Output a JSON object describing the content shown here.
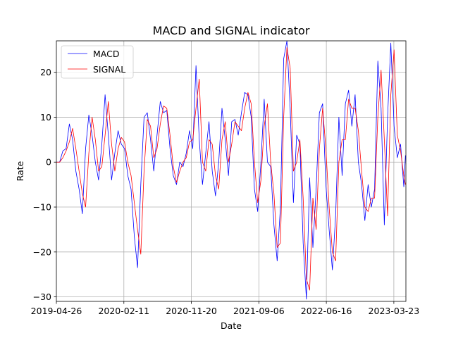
{
  "chart_data": {
    "type": "line",
    "title": "MACD and SIGNAL indicator",
    "xlabel": "Date",
    "ylabel": "Rate",
    "x_tick_labels": [
      "2019-04-26",
      "2020-02-11",
      "2020-11-20",
      "2021-09-06",
      "2022-06-16",
      "2023-03-23"
    ],
    "y_ticks": [
      -30,
      -20,
      -10,
      0,
      10,
      20
    ],
    "ylim": [
      -31,
      27
    ],
    "grid": true,
    "legend_position": "top-left",
    "series": [
      {
        "name": "MACD",
        "color": "#0000ff",
        "points": [
          [
            "2019-04-26",
            0
          ],
          [
            "2019-05-10",
            0
          ],
          [
            "2019-05-24",
            2.5
          ],
          [
            "2019-06-07",
            3
          ],
          [
            "2019-06-21",
            8.5
          ],
          [
            "2019-07-05",
            5
          ],
          [
            "2019-07-19",
            -2
          ],
          [
            "2019-08-02",
            -6
          ],
          [
            "2019-08-16",
            -11.5
          ],
          [
            "2019-08-30",
            3
          ],
          [
            "2019-09-13",
            10.5
          ],
          [
            "2019-09-27",
            6
          ],
          [
            "2019-10-11",
            0
          ],
          [
            "2019-10-25",
            -4
          ],
          [
            "2019-11-08",
            4
          ],
          [
            "2019-11-22",
            15
          ],
          [
            "2019-12-06",
            6
          ],
          [
            "2019-12-20",
            -4
          ],
          [
            "2020-01-03",
            2
          ],
          [
            "2020-01-17",
            7
          ],
          [
            "2020-01-31",
            4
          ],
          [
            "2020-02-14",
            3
          ],
          [
            "2020-02-28",
            -3
          ],
          [
            "2020-03-13",
            -6
          ],
          [
            "2020-03-27",
            -16.5
          ],
          [
            "2020-04-10",
            -23.5
          ],
          [
            "2020-04-24",
            -5
          ],
          [
            "2020-05-08",
            10
          ],
          [
            "2020-05-22",
            11
          ],
          [
            "2020-06-05",
            5
          ],
          [
            "2020-06-19",
            -2
          ],
          [
            "2020-07-03",
            6
          ],
          [
            "2020-07-17",
            13.5
          ],
          [
            "2020-07-31",
            11
          ],
          [
            "2020-08-14",
            11.5
          ],
          [
            "2020-08-28",
            3
          ],
          [
            "2020-09-11",
            -3
          ],
          [
            "2020-09-25",
            -5
          ],
          [
            "2020-10-09",
            0
          ],
          [
            "2020-10-23",
            -1
          ],
          [
            "2020-11-06",
            2
          ],
          [
            "2020-11-20",
            7
          ],
          [
            "2020-12-04",
            3
          ],
          [
            "2020-12-18",
            21.5
          ],
          [
            "2021-01-01",
            5
          ],
          [
            "2021-01-15",
            -5
          ],
          [
            "2021-01-29",
            2
          ],
          [
            "2021-02-12",
            9
          ],
          [
            "2021-02-26",
            -2
          ],
          [
            "2021-03-12",
            -7.5
          ],
          [
            "2021-03-26",
            0
          ],
          [
            "2021-04-09",
            12
          ],
          [
            "2021-04-23",
            5
          ],
          [
            "2021-05-07",
            -3
          ],
          [
            "2021-05-21",
            9
          ],
          [
            "2021-06-04",
            9.5
          ],
          [
            "2021-06-18",
            6
          ],
          [
            "2021-07-02",
            11
          ],
          [
            "2021-07-16",
            15.5
          ],
          [
            "2021-07-30",
            15
          ],
          [
            "2021-08-13",
            10
          ],
          [
            "2021-08-27",
            -6
          ],
          [
            "2021-09-10",
            -11
          ],
          [
            "2021-09-24",
            0
          ],
          [
            "2021-10-08",
            14
          ],
          [
            "2021-10-22",
            0
          ],
          [
            "2021-11-05",
            -1
          ],
          [
            "2021-11-19",
            -14
          ],
          [
            "2021-12-03",
            -22
          ],
          [
            "2021-12-17",
            -10
          ],
          [
            "2021-12-31",
            23
          ],
          [
            "2022-01-14",
            27
          ],
          [
            "2022-01-28",
            12
          ],
          [
            "2022-02-11",
            -9
          ],
          [
            "2022-02-25",
            6
          ],
          [
            "2022-03-11",
            4
          ],
          [
            "2022-03-25",
            -18
          ],
          [
            "2022-04-08",
            -30.5
          ],
          [
            "2022-04-22",
            -3.5
          ],
          [
            "2022-05-06",
            -19
          ],
          [
            "2022-05-20",
            -6
          ],
          [
            "2022-06-03",
            11
          ],
          [
            "2022-06-17",
            13
          ],
          [
            "2022-07-01",
            -5
          ],
          [
            "2022-07-15",
            -15
          ],
          [
            "2022-07-29",
            -24
          ],
          [
            "2022-08-12",
            -12
          ],
          [
            "2022-08-26",
            10
          ],
          [
            "2022-09-09",
            -3
          ],
          [
            "2022-09-23",
            13
          ],
          [
            "2022-10-07",
            16
          ],
          [
            "2022-10-21",
            8
          ],
          [
            "2022-11-04",
            15
          ],
          [
            "2022-11-18",
            0
          ],
          [
            "2022-12-02",
            -5
          ],
          [
            "2022-12-16",
            -13
          ],
          [
            "2022-12-30",
            -5
          ],
          [
            "2023-01-13",
            -10
          ],
          [
            "2023-01-27",
            -6
          ],
          [
            "2023-02-10",
            22.5
          ],
          [
            "2023-02-24",
            12
          ],
          [
            "2023-03-10",
            -14
          ],
          [
            "2023-03-24",
            10
          ],
          [
            "2023-04-07",
            26.5
          ],
          [
            "2023-04-21",
            8
          ],
          [
            "2023-05-05",
            1
          ],
          [
            "2023-05-19",
            4
          ],
          [
            "2023-06-02",
            -5.5
          ],
          [
            "2023-06-09",
            1.5
          ]
        ]
      },
      {
        "name": "SIGNAL",
        "color": "#ff0000",
        "points": [
          [
            "2019-04-26",
            0
          ],
          [
            "2019-05-10",
            0
          ],
          [
            "2019-05-24",
            1
          ],
          [
            "2019-06-07",
            2.5
          ],
          [
            "2019-06-21",
            4.5
          ],
          [
            "2019-07-05",
            7.5
          ],
          [
            "2019-07-19",
            3
          ],
          [
            "2019-08-02",
            -2
          ],
          [
            "2019-08-16",
            -7
          ],
          [
            "2019-08-30",
            -10
          ],
          [
            "2019-09-13",
            2
          ],
          [
            "2019-09-27",
            10
          ],
          [
            "2019-10-11",
            5
          ],
          [
            "2019-10-25",
            -2
          ],
          [
            "2019-11-08",
            -1
          ],
          [
            "2019-11-22",
            6
          ],
          [
            "2019-12-06",
            13.5
          ],
          [
            "2019-12-20",
            4
          ],
          [
            "2020-01-03",
            -2
          ],
          [
            "2020-01-17",
            3
          ],
          [
            "2020-01-31",
            5.5
          ],
          [
            "2020-02-14",
            4.5
          ],
          [
            "2020-02-28",
            0
          ],
          [
            "2020-03-13",
            -3
          ],
          [
            "2020-03-27",
            -9
          ],
          [
            "2020-04-10",
            -15
          ],
          [
            "2020-04-24",
            -20.5
          ],
          [
            "2020-05-08",
            -2
          ],
          [
            "2020-05-22",
            9.5
          ],
          [
            "2020-06-05",
            8
          ],
          [
            "2020-06-19",
            1
          ],
          [
            "2020-07-03",
            3
          ],
          [
            "2020-07-17",
            8.5
          ],
          [
            "2020-07-31",
            12.5
          ],
          [
            "2020-08-14",
            12
          ],
          [
            "2020-08-28",
            6
          ],
          [
            "2020-09-11",
            -1
          ],
          [
            "2020-09-25",
            -4.5
          ],
          [
            "2020-10-09",
            -2
          ],
          [
            "2020-10-23",
            0
          ],
          [
            "2020-11-06",
            1
          ],
          [
            "2020-11-20",
            4.5
          ],
          [
            "2020-12-04",
            5
          ],
          [
            "2020-12-18",
            12
          ],
          [
            "2021-01-01",
            18.5
          ],
          [
            "2021-01-15",
            0
          ],
          [
            "2021-01-29",
            -2
          ],
          [
            "2021-02-12",
            5
          ],
          [
            "2021-02-26",
            4
          ],
          [
            "2021-03-12",
            -3
          ],
          [
            "2021-03-26",
            -6
          ],
          [
            "2021-04-09",
            5
          ],
          [
            "2021-04-23",
            9
          ],
          [
            "2021-05-07",
            0
          ],
          [
            "2021-05-21",
            4
          ],
          [
            "2021-06-04",
            9
          ],
          [
            "2021-06-18",
            8
          ],
          [
            "2021-07-02",
            7
          ],
          [
            "2021-07-16",
            12
          ],
          [
            "2021-07-30",
            15.5
          ],
          [
            "2021-08-13",
            13
          ],
          [
            "2021-08-27",
            0
          ],
          [
            "2021-09-10",
            -9
          ],
          [
            "2021-09-24",
            -4
          ],
          [
            "2021-10-08",
            8
          ],
          [
            "2021-10-22",
            13
          ],
          [
            "2021-11-05",
            0
          ],
          [
            "2021-11-19",
            -7
          ],
          [
            "2021-12-03",
            -19
          ],
          [
            "2021-12-17",
            -18
          ],
          [
            "2021-12-31",
            10
          ],
          [
            "2022-01-14",
            25.5
          ],
          [
            "2022-01-28",
            21
          ],
          [
            "2022-02-11",
            -2
          ],
          [
            "2022-02-25",
            0
          ],
          [
            "2022-03-11",
            5
          ],
          [
            "2022-03-25",
            -8
          ],
          [
            "2022-04-08",
            -26
          ],
          [
            "2022-04-22",
            -28.5
          ],
          [
            "2022-05-06",
            -8
          ],
          [
            "2022-05-20",
            -15
          ],
          [
            "2022-06-03",
            3
          ],
          [
            "2022-06-17",
            12
          ],
          [
            "2022-07-01",
            3
          ],
          [
            "2022-07-15",
            -10
          ],
          [
            "2022-07-29",
            -20
          ],
          [
            "2022-08-12",
            -22
          ],
          [
            "2022-08-26",
            0
          ],
          [
            "2022-09-09",
            5
          ],
          [
            "2022-09-23",
            5
          ],
          [
            "2022-10-07",
            14
          ],
          [
            "2022-10-21",
            12
          ],
          [
            "2022-11-04",
            12
          ],
          [
            "2022-11-18",
            7
          ],
          [
            "2022-12-02",
            -2
          ],
          [
            "2022-12-16",
            -10
          ],
          [
            "2022-12-30",
            -11
          ],
          [
            "2023-01-13",
            -8
          ],
          [
            "2023-01-27",
            -8
          ],
          [
            "2023-02-10",
            10
          ],
          [
            "2023-02-24",
            20.5
          ],
          [
            "2023-03-10",
            5
          ],
          [
            "2023-03-24",
            -12
          ],
          [
            "2023-04-07",
            15
          ],
          [
            "2023-04-21",
            25
          ],
          [
            "2023-05-05",
            6
          ],
          [
            "2023-05-19",
            2.5
          ],
          [
            "2023-06-02",
            -3
          ],
          [
            "2023-06-09",
            -5
          ]
        ]
      }
    ]
  }
}
